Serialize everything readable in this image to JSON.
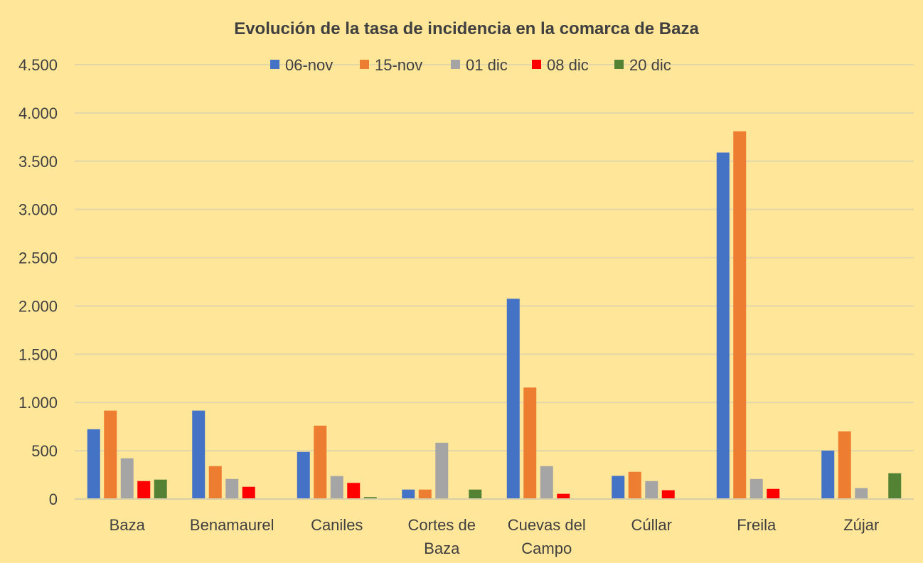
{
  "chart_data": {
    "type": "bar",
    "title": "Evolución de la tasa de incidencia en la comarca de Baza",
    "xlabel": "",
    "ylabel": "",
    "ylim": [
      0,
      4500
    ],
    "yticks": [
      0,
      500,
      1000,
      1500,
      2000,
      2500,
      3000,
      3500,
      4000,
      4500
    ],
    "ytick_labels": [
      "0",
      "500",
      "1.000",
      "1.500",
      "2.000",
      "2.500",
      "3.000",
      "3.500",
      "4.000",
      "4.500"
    ],
    "grid": true,
    "legend_position": "top",
    "categories": [
      [
        "Baza"
      ],
      [
        "Benamaurel"
      ],
      [
        "Caniles"
      ],
      [
        "Cortes de",
        "Baza"
      ],
      [
        "Cuevas del",
        "Campo"
      ],
      [
        "Cúllar"
      ],
      [
        "Freila"
      ],
      [
        "Zújar"
      ]
    ],
    "series": [
      {
        "name": "06-nov",
        "color": "#4472C4",
        "values": [
          723,
          916,
          488,
          98,
          2075,
          240,
          3590,
          502
        ]
      },
      {
        "name": "15-nov",
        "color": "#ED7D31",
        "values": [
          916,
          341,
          760,
          98,
          1155,
          282,
          3810,
          701
        ]
      },
      {
        "name": "01 dic",
        "color": "#A5A5A5",
        "values": [
          422,
          208,
          238,
          583,
          341,
          186,
          208,
          113
        ]
      },
      {
        "name": "08 dic",
        "color": "#FF0000",
        "values": [
          186,
          127,
          167,
          0,
          54,
          91,
          105,
          0
        ]
      },
      {
        "name": "20 dic",
        "color": "#548235",
        "values": [
          201,
          0,
          20,
          98,
          0,
          0,
          0,
          267
        ]
      }
    ]
  }
}
